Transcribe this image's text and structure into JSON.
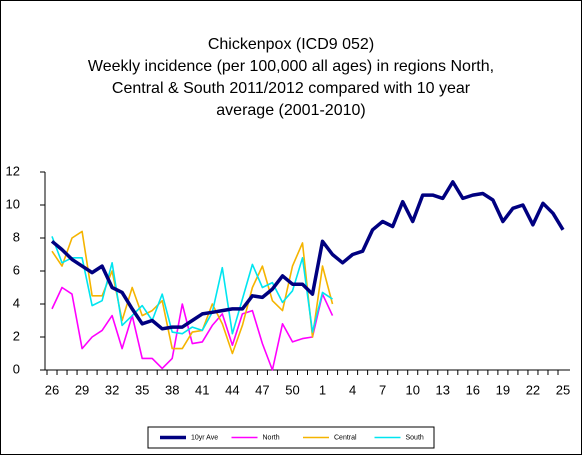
{
  "chart_data": {
    "type": "line",
    "title": [
      "Chickenpox (ICD9 052)",
      "Weekly incidence (per 100,000 all ages) in regions North,",
      "Central & South 2011/2012 compared with 10 year",
      "average (2001-2010)"
    ],
    "categories": [
      "26",
      null,
      null,
      "29",
      null,
      null,
      "32",
      null,
      null,
      "35",
      null,
      null,
      "38",
      null,
      null,
      "41",
      null,
      null,
      "44",
      null,
      null,
      "47",
      null,
      null,
      "50",
      null,
      null,
      "1",
      null,
      null,
      "4",
      null,
      null,
      "7",
      null,
      null,
      "10",
      null,
      null,
      "13",
      null,
      null,
      "16",
      null,
      null,
      "19",
      null,
      null,
      "22",
      null,
      null,
      "25"
    ],
    "series": [
      {
        "name": "10yr Ave",
        "color": "#000080",
        "width": 3.5,
        "values": [
          7.8,
          7.3,
          6.7,
          6.3,
          5.9,
          6.3,
          5.0,
          4.7,
          3.7,
          2.8,
          3.0,
          2.5,
          2.6,
          2.6,
          3.0,
          3.4,
          3.5,
          3.6,
          3.7,
          3.7,
          4.5,
          4.4,
          4.9,
          5.7,
          5.2,
          5.2,
          4.6,
          7.8,
          7.0,
          6.5,
          7.0,
          7.2,
          8.5,
          9.0,
          8.7,
          10.2,
          9.0,
          10.6,
          10.6,
          10.4,
          11.4,
          10.4,
          10.6,
          10.7,
          10.3,
          9.0,
          9.8,
          10.0,
          8.8,
          10.1,
          9.5,
          8.5
        ]
      },
      {
        "name": "North",
        "color": "#ff00ff",
        "width": 1.6,
        "values": [
          3.7,
          5.0,
          4.6,
          1.3,
          2.0,
          2.4,
          3.3,
          1.3,
          3.3,
          0.7,
          0.7,
          0.1,
          0.7,
          4.0,
          1.6,
          1.7,
          2.7,
          3.4,
          1.5,
          3.4,
          3.6,
          1.6,
          0.0,
          2.8,
          1.7,
          1.9,
          2.0,
          4.6,
          3.3,
          null,
          null,
          null,
          null,
          null,
          null,
          null,
          null,
          null,
          null,
          null,
          null,
          null,
          null,
          null,
          null,
          null,
          null,
          null,
          null,
          null,
          null,
          null
        ]
      },
      {
        "name": "Central",
        "color": "#f5b400",
        "width": 1.6,
        "values": [
          7.2,
          6.3,
          8.0,
          8.4,
          4.5,
          4.5,
          6.0,
          3.0,
          5.0,
          3.3,
          3.6,
          4.2,
          1.3,
          1.3,
          2.3,
          2.4,
          4.0,
          2.8,
          1.0,
          2.7,
          5.0,
          6.3,
          4.2,
          3.6,
          6.3,
          7.7,
          2.0,
          6.3,
          4.0,
          null,
          null,
          null,
          null,
          null,
          null,
          null,
          null,
          null,
          null,
          null,
          null,
          null,
          null,
          null,
          null,
          null,
          null,
          null,
          null,
          null,
          null,
          null
        ]
      },
      {
        "name": "South",
        "color": "#00e5f0",
        "width": 1.6,
        "values": [
          8.1,
          6.5,
          6.8,
          6.8,
          3.9,
          4.2,
          6.5,
          2.7,
          3.3,
          3.9,
          3.0,
          4.6,
          2.3,
          2.2,
          2.6,
          2.4,
          3.5,
          6.2,
          2.2,
          4.3,
          6.4,
          5.0,
          5.3,
          4.1,
          4.8,
          6.8,
          2.3,
          4.7,
          4.3,
          null,
          null,
          null,
          null,
          null,
          null,
          null,
          null,
          null,
          null,
          null,
          null,
          null,
          null,
          null,
          null,
          null,
          null,
          null,
          null,
          null,
          null,
          null
        ]
      }
    ],
    "ylim": [
      0,
      12
    ],
    "yticks": [
      0,
      2,
      4,
      6,
      8,
      10,
      12
    ],
    "grid": false,
    "legend": "bottom"
  }
}
